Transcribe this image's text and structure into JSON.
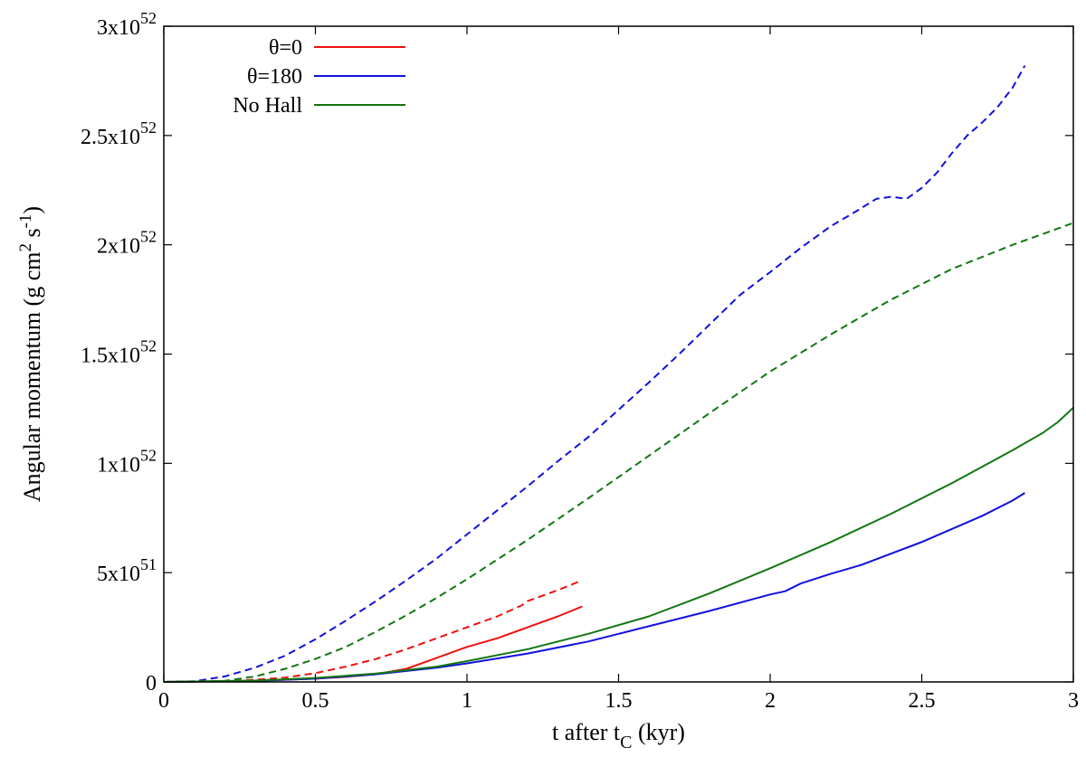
{
  "chart_data": {
    "type": "line",
    "title": "",
    "xlabel": {
      "main": "t after t",
      "sub": "C",
      "tail": " (kyr)"
    },
    "ylabel": {
      "pre": "Angular momentum (g cm",
      "sup1": "2",
      "mid": " s",
      "sup2": "-1",
      "post": ")"
    },
    "xlim": [
      0,
      3
    ],
    "ylim": [
      0,
      3e+52
    ],
    "grid": false,
    "legend_position": "top-left",
    "x_ticks": [
      {
        "value": 0,
        "label": "0"
      },
      {
        "value": 0.5,
        "label": "0.5"
      },
      {
        "value": 1,
        "label": "1"
      },
      {
        "value": 1.5,
        "label": "1.5"
      },
      {
        "value": 2,
        "label": "2"
      },
      {
        "value": 2.5,
        "label": "2.5"
      },
      {
        "value": 3,
        "label": "3"
      }
    ],
    "y_ticks": [
      {
        "value": 0,
        "mantissa": "0",
        "exponent": ""
      },
      {
        "value": 5e+51,
        "mantissa": "5x10",
        "exponent": "51"
      },
      {
        "value": 1e+52,
        "mantissa": "1x10",
        "exponent": "52"
      },
      {
        "value": 1.5e+52,
        "mantissa": "1.5x10",
        "exponent": "52"
      },
      {
        "value": 2e+52,
        "mantissa": "2x10",
        "exponent": "52"
      },
      {
        "value": 2.5e+52,
        "mantissa": "2.5x10",
        "exponent": "52"
      },
      {
        "value": 3e+52,
        "mantissa": "3x10",
        "exponent": "52"
      }
    ],
    "legend": [
      {
        "label": "θ=0",
        "color": "#ee1111"
      },
      {
        "label": "θ=180",
        "color": "#1111dd"
      },
      {
        "label": "No Hall",
        "color": "#117711"
      }
    ],
    "series": [
      {
        "name": "θ=0 solid",
        "color": "#ee1111",
        "dash": false,
        "x": [
          0,
          0.3,
          0.5,
          0.6,
          0.7,
          0.8,
          0.9,
          1.0,
          1.1,
          1.18,
          1.2,
          1.3,
          1.38
        ],
        "y": [
          0,
          5e+49,
          1.5e+50,
          2.3e+50,
          3.5e+50,
          6e+50,
          1.1e+51,
          1.6e+51,
          2e+51,
          2.4e+51,
          2.5e+51,
          3e+51,
          3.45e+51
        ]
      },
      {
        "name": "θ=0 dashed",
        "color": "#ee1111",
        "dash": true,
        "x": [
          0,
          0.2,
          0.3,
          0.4,
          0.5,
          0.6,
          0.7,
          0.8,
          0.9,
          1.0,
          1.1,
          1.18,
          1.2,
          1.3,
          1.38
        ],
        "y": [
          0,
          3e+49,
          1e+50,
          2e+50,
          4e+50,
          7e+50,
          1.05e+51,
          1.5e+51,
          2e+51,
          2.5e+51,
          3e+51,
          3.5e+51,
          3.7e+51,
          4.2e+51,
          4.65e+51
        ]
      },
      {
        "name": "θ=180 solid",
        "color": "#1111dd",
        "dash": false,
        "x": [
          0,
          0.3,
          0.5,
          0.7,
          0.9,
          1.0,
          1.2,
          1.4,
          1.6,
          1.8,
          2.0,
          2.05,
          2.1,
          2.2,
          2.3,
          2.5,
          2.6,
          2.7,
          2.8,
          2.84
        ],
        "y": [
          0,
          5e+49,
          1.5e+50,
          3.5e+50,
          6.5e+50,
          8.5e+50,
          1.3e+51,
          1.85e+51,
          2.55e+51,
          3.25e+51,
          4e+51,
          4.15e+51,
          4.5e+51,
          4.95e+51,
          5.35e+51,
          6.4e+51,
          7e+51,
          7.6e+51,
          8.3e+51,
          8.65e+51
        ]
      },
      {
        "name": "θ=180 dashed",
        "color": "#1111dd",
        "dash": true,
        "x": [
          0,
          0.1,
          0.2,
          0.3,
          0.4,
          0.5,
          0.6,
          0.7,
          0.8,
          0.9,
          1.0,
          1.1,
          1.2,
          1.3,
          1.4,
          1.5,
          1.6,
          1.7,
          1.8,
          1.9,
          2.0,
          2.1,
          2.2,
          2.28,
          2.35,
          2.4,
          2.45,
          2.5,
          2.55,
          2.6,
          2.65,
          2.7,
          2.75,
          2.8,
          2.84
        ],
        "y": [
          0,
          3e+49,
          2.5e+50,
          6.5e+50,
          1.2e+51,
          1.95e+51,
          2.8e+51,
          3.7e+51,
          4.65e+51,
          5.65e+51,
          6.75e+51,
          7.85e+51,
          8.95e+51,
          1.01e+52,
          1.12e+52,
          1.245e+52,
          1.37e+52,
          1.5e+52,
          1.635e+52,
          1.77e+52,
          1.875e+52,
          1.985e+52,
          2.085e+52,
          2.15e+52,
          2.21e+52,
          2.22e+52,
          2.21e+52,
          2.26e+52,
          2.33e+52,
          2.42e+52,
          2.5e+52,
          2.56e+52,
          2.63e+52,
          2.72e+52,
          2.82e+52
        ]
      },
      {
        "name": "No Hall solid",
        "color": "#117711",
        "dash": false,
        "x": [
          0,
          0.3,
          0.5,
          0.7,
          0.9,
          1.0,
          1.2,
          1.4,
          1.6,
          1.8,
          2.0,
          2.2,
          2.4,
          2.6,
          2.8,
          2.9,
          2.95,
          3.0
        ],
        "y": [
          0,
          6e+49,
          1.8e+50,
          3.8e+50,
          7e+50,
          9.5e+50,
          1.5e+51,
          2.2e+51,
          3e+51,
          4.05e+51,
          5.2e+51,
          6.4e+51,
          7.7e+51,
          9.1e+51,
          1.06e+52,
          1.14e+52,
          1.19e+52,
          1.255e+52
        ]
      },
      {
        "name": "No Hall dashed",
        "color": "#117711",
        "dash": true,
        "x": [
          0,
          0.2,
          0.3,
          0.4,
          0.5,
          0.6,
          0.7,
          0.8,
          0.9,
          1.0,
          1.2,
          1.4,
          1.6,
          1.8,
          2.0,
          2.2,
          2.4,
          2.6,
          2.8,
          3.0
        ],
        "y": [
          0,
          5e+49,
          2.5e+50,
          6e+50,
          1.05e+51,
          1.6e+51,
          2.3e+51,
          3.05e+51,
          3.85e+51,
          4.7e+51,
          6.5e+51,
          8.4e+51,
          1.035e+52,
          1.23e+52,
          1.42e+52,
          1.59e+52,
          1.75e+52,
          1.89e+52,
          2e+52,
          2.1e+52
        ]
      }
    ]
  }
}
